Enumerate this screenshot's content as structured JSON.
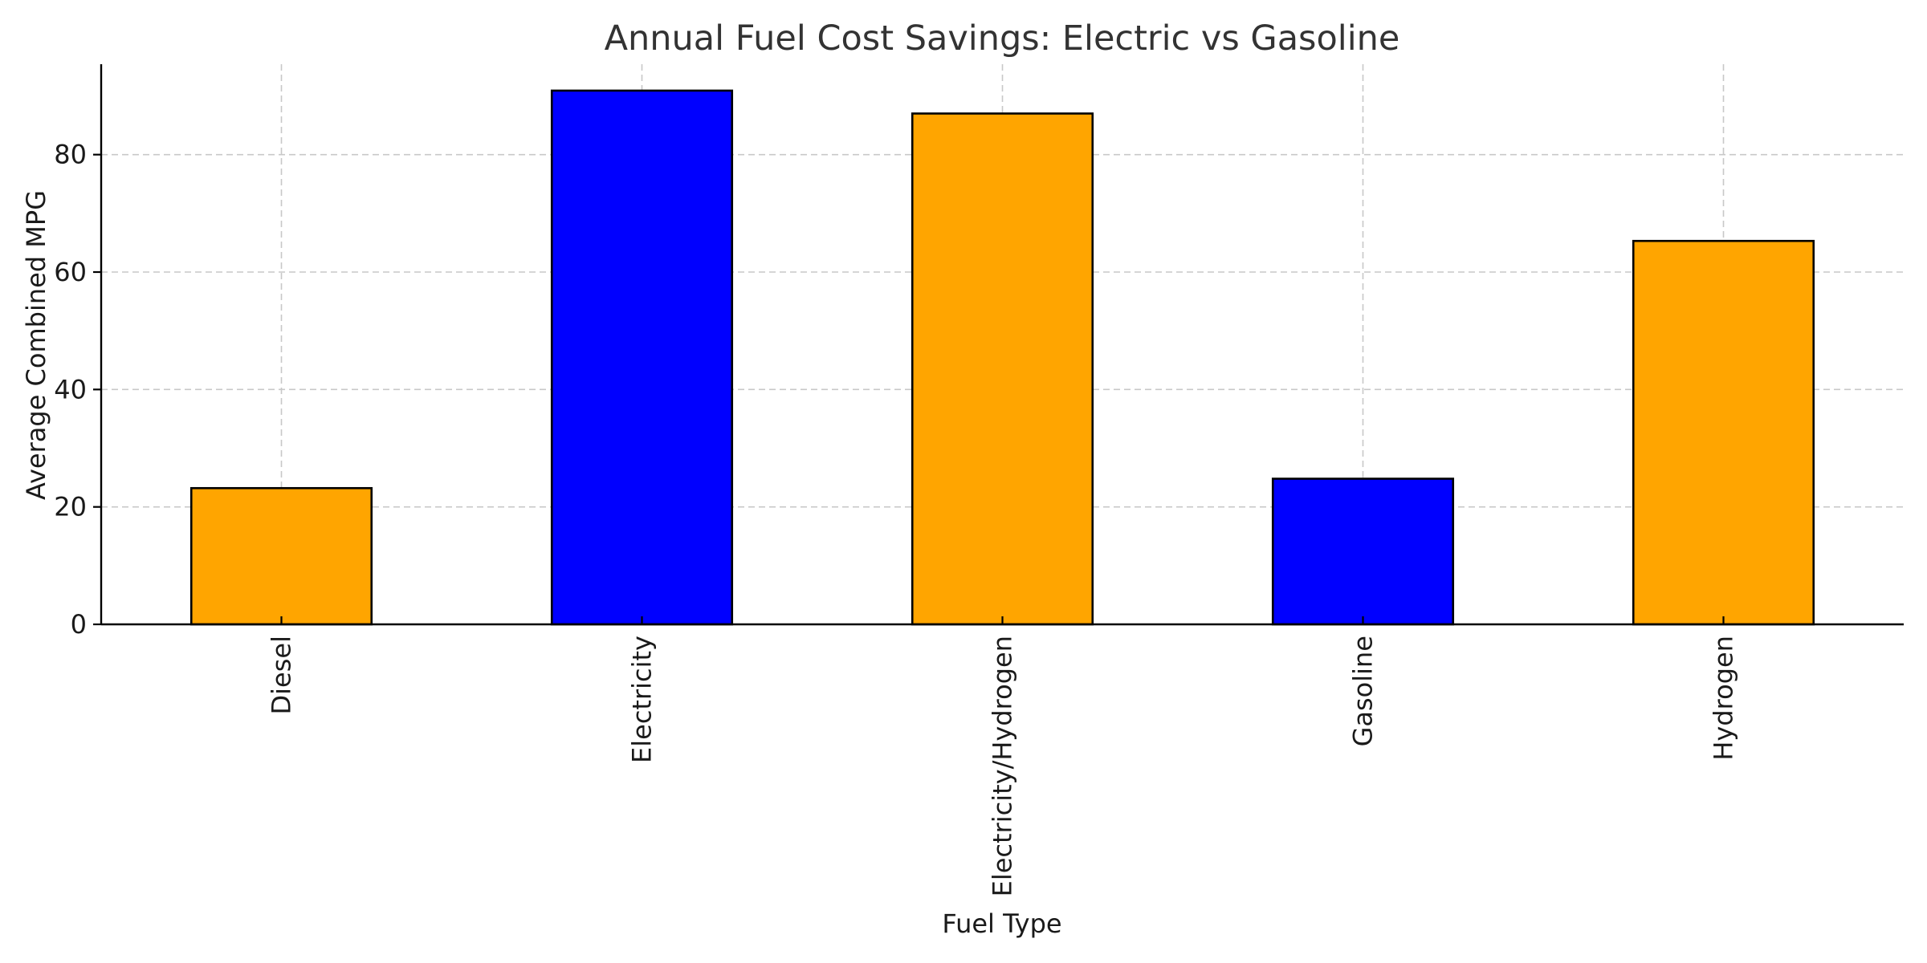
{
  "chart_data": {
    "type": "bar",
    "title": "Annual Fuel Cost Savings: Electric vs Gasoline",
    "xlabel": "Fuel Type",
    "ylabel": "Average Combined MPG",
    "categories": [
      "Diesel",
      "Electricity",
      "Electricity/Hydrogen",
      "Gasoline",
      "Hydrogen"
    ],
    "values": [
      23.2,
      90.9,
      87.0,
      24.8,
      65.3
    ],
    "colors": [
      "#FFA500",
      "#0000FF",
      "#FFA500",
      "#0000FF",
      "#FFA500"
    ],
    "ylim": [
      0,
      95.4
    ],
    "yticks": [
      0,
      20,
      40,
      60,
      80
    ],
    "grid": true
  }
}
